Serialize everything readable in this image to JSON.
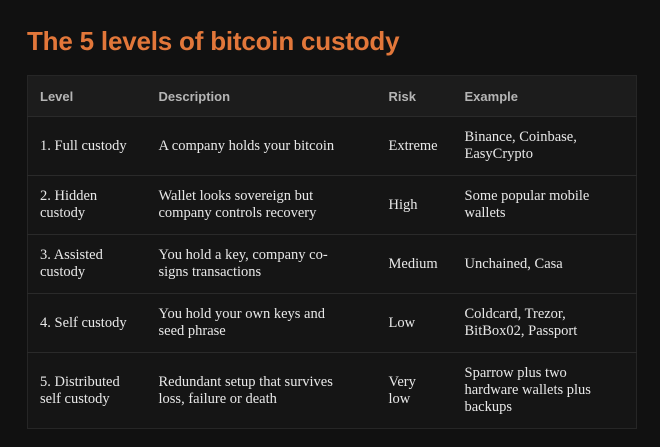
{
  "title": "The 5 levels of bitcoin custody",
  "headers": [
    "Level",
    "Description",
    "Risk",
    "Example"
  ],
  "rows": [
    [
      "1. Full custody",
      "A company holds your bitcoin",
      "Extreme",
      "Binance, Coinbase, EasyCrypto"
    ],
    [
      "2. Hidden custody",
      "Wallet looks sovereign but company controls recovery",
      "High",
      "Some popular mobile wallets"
    ],
    [
      "3. Assisted custody",
      "You hold a key, company co-signs transactions",
      "Medium",
      "Unchained, Casa"
    ],
    [
      "4. Self custody",
      "You hold your own keys and seed phrase",
      "Low",
      "Coldcard, Trezor, BitBox02, Passport"
    ],
    [
      "5. Distributed self custody",
      "Redundant setup that survives loss, failure or death",
      "Very low",
      "Sparrow plus two hardware wallets plus backups"
    ]
  ],
  "colors": {
    "title": "#e2773a",
    "background": "#111111"
  }
}
